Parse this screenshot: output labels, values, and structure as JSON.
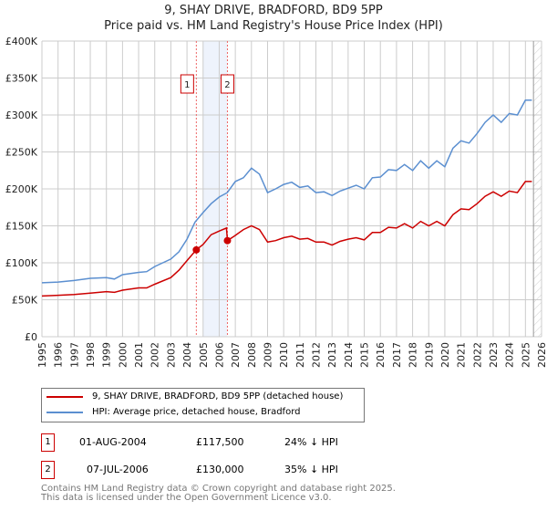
{
  "title": "9, SHAY DRIVE, BRADFORD, BD9 5PP",
  "subtitle": "Price paid vs. HM Land Registry's House Price Index (HPI)",
  "chart_data": {
    "type": "line",
    "title": "9, SHAY DRIVE, BRADFORD, BD9 5PP",
    "subtitle": "Price paid vs. HM Land Registry's House Price Index (HPI)",
    "xlim": [
      1995,
      2026
    ],
    "ylim": [
      0,
      400000
    ],
    "x_ticks": [
      "1995",
      "1996",
      "1997",
      "1998",
      "1999",
      "2000",
      "2001",
      "2002",
      "2003",
      "2004",
      "2005",
      "2006",
      "2007",
      "2008",
      "2009",
      "2010",
      "2011",
      "2012",
      "2013",
      "2014",
      "2015",
      "2016",
      "2017",
      "2018",
      "2019",
      "2020",
      "2021",
      "2022",
      "2023",
      "2024",
      "2025",
      "2026"
    ],
    "y_ticks": [
      {
        "v": 0,
        "l": "£0"
      },
      {
        "v": 50000,
        "l": "£50K"
      },
      {
        "v": 100000,
        "l": "£100K"
      },
      {
        "v": 150000,
        "l": "£150K"
      },
      {
        "v": 200000,
        "l": "£200K"
      },
      {
        "v": 250000,
        "l": "£250K"
      },
      {
        "v": 300000,
        "l": "£300K"
      },
      {
        "v": 350000,
        "l": "£350K"
      },
      {
        "v": 400000,
        "l": "£400K"
      }
    ],
    "grid": true,
    "shaded_range": [
      2005.0,
      2006.5
    ],
    "forecast_hatch_from": 2025.5,
    "colors": {
      "property": "#cc0000",
      "hpi": "#5b8fd0"
    },
    "series": [
      {
        "name": "9, SHAY DRIVE, BRADFORD, BD9 5PP (detached house)",
        "color": "#cc0000",
        "x": [
          1995,
          1996,
          1997,
          1998,
          1999,
          1999.5,
          2000,
          2001,
          2001.5,
          2002,
          2003,
          2003.5,
          2004,
          2004.58,
          2005,
          2005.5,
          2006,
          2006.45,
          2006.51,
          2007,
          2007.5,
          2008,
          2008.5,
          2009,
          2009.5,
          2010,
          2010.5,
          2011,
          2011.5,
          2012,
          2012.5,
          2013,
          2013.5,
          2014,
          2014.5,
          2015,
          2015.5,
          2016,
          2016.5,
          2017,
          2017.5,
          2018,
          2018.5,
          2019,
          2019.5,
          2020,
          2020.5,
          2021,
          2021.5,
          2022,
          2022.5,
          2023,
          2023.5,
          2024,
          2024.5,
          2025,
          2025.4
        ],
        "y": [
          55000,
          56000,
          57000,
          59000,
          61000,
          60000,
          63000,
          66000,
          66000,
          71000,
          80000,
          90000,
          103000,
          117500,
          125000,
          138000,
          143000,
          147000,
          130000,
          137000,
          145000,
          150000,
          145000,
          128000,
          130000,
          134000,
          136000,
          132000,
          133000,
          128000,
          128000,
          124000,
          129000,
          132000,
          134000,
          131000,
          141000,
          141000,
          148000,
          147000,
          153000,
          147000,
          156000,
          150000,
          156000,
          150000,
          165000,
          173000,
          172000,
          180000,
          190000,
          196000,
          190000,
          197000,
          195000,
          210000,
          210000
        ]
      },
      {
        "name": "HPI: Average price, detached house, Bradford",
        "color": "#5b8fd0",
        "x": [
          1995,
          1996,
          1997,
          1998,
          1999,
          1999.5,
          2000,
          2001,
          2001.5,
          2002,
          2003,
          2003.5,
          2004,
          2004.5,
          2005,
          2005.5,
          2006,
          2006.5,
          2007,
          2007.5,
          2008,
          2008.5,
          2009,
          2009.5,
          2010,
          2010.5,
          2011,
          2011.5,
          2012,
          2012.5,
          2013,
          2013.5,
          2014,
          2014.5,
          2015,
          2015.5,
          2016,
          2016.5,
          2017,
          2017.5,
          2018,
          2018.5,
          2019,
          2019.5,
          2020,
          2020.5,
          2021,
          2021.5,
          2022,
          2022.5,
          2023,
          2023.5,
          2024,
          2024.5,
          2025,
          2025.4
        ],
        "y": [
          73000,
          74000,
          76000,
          79000,
          80000,
          78000,
          84000,
          87000,
          88000,
          95000,
          105000,
          115000,
          132000,
          155000,
          168000,
          180000,
          189000,
          195000,
          210000,
          215000,
          228000,
          220000,
          195000,
          200000,
          206000,
          209000,
          202000,
          204000,
          195000,
          196000,
          191000,
          197000,
          201000,
          205000,
          200000,
          215000,
          216000,
          226000,
          225000,
          233000,
          225000,
          238000,
          228000,
          238000,
          230000,
          255000,
          265000,
          262000,
          275000,
          290000,
          300000,
          290000,
          302000,
          300000,
          320000,
          320000
        ]
      }
    ],
    "sales": [
      {
        "id": "1",
        "x": 2004.58,
        "y": 117500,
        "date": "01-AUG-2004",
        "price": "£117,500",
        "delta": "24% ↓ HPI"
      },
      {
        "id": "2",
        "x": 2006.51,
        "y": 130000,
        "date": "07-JUL-2006",
        "price": "£130,000",
        "delta": "35% ↓ HPI"
      }
    ]
  },
  "footer": {
    "line1": "Contains HM Land Registry data © Crown copyright and database right 2025.",
    "line2": "This data is licensed under the Open Government Licence v3.0."
  }
}
